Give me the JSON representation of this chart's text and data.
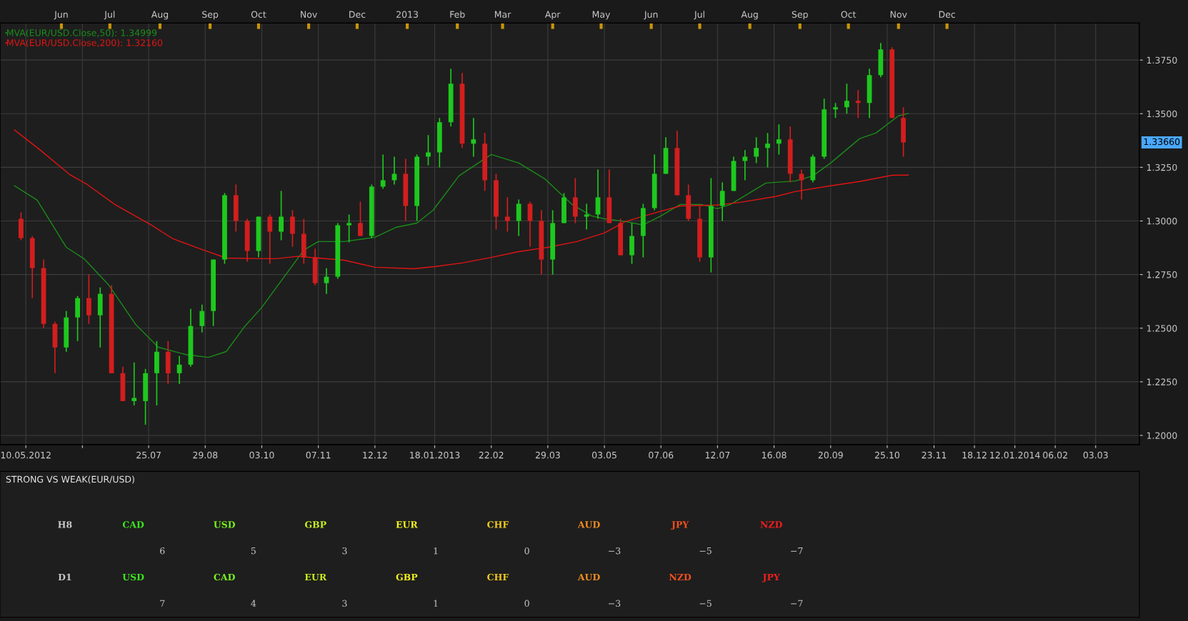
{
  "chart_data": [
    {
      "type": "candlestick",
      "colors": [
        "#d21e1e",
        "#d21e1e",
        "#d21e1e",
        "#d21e1e",
        "#1ec81e",
        "#1ec81e",
        "#d21e1e",
        "#1ec81e",
        "#d21e1e",
        "#d21e1e",
        "#1ec81e",
        "#1ec81e",
        "#1ec81e",
        "#d21e1e",
        "#1ec81e",
        "#1ec81e",
        "#1ec81e",
        "#1ec81e",
        "#1ec81e",
        "#d21e1e",
        "#d21e1e",
        "#1ec81e",
        "#d21e1e",
        "#1ec81e",
        "#d21e1e",
        "#d21e1e",
        "#d21e1e",
        "#1ec81e",
        "#1ec81e",
        "#1ec81e",
        "#d21e1e",
        "#1ec81e",
        "#1ec81e",
        "#1ec81e",
        "#d21e1e",
        "#1ec81e",
        "#1ec81e",
        "#1ec81e",
        "#1ec81e",
        "#d21e1e",
        "#1ec81e",
        "#d21e1e",
        "#d21e1e",
        "#d21e1e",
        "#1ec81e",
        "#d21e1e",
        "#d21e1e",
        "#1ec81e",
        "#1ec81e",
        "#d21e1e",
        "#1ec81e",
        "#1ec81e",
        "#d21e1e",
        "#d21e1e",
        "#1ec81e",
        "#1ec81e",
        "#1ec81e",
        "#1ec81e",
        "#d21e1e",
        "#d21e1e",
        "#d21e1e",
        "#1ec81e",
        "#1ec81e",
        "#1ec81e",
        "#1ec81e",
        "#1ec81e",
        "#1ec81e",
        "#1ec81e",
        "#d21e1e",
        "#d21e1e",
        "#1ec81e",
        "#1ec81e",
        "#1ec81e",
        "#1ec81e",
        "#d21e1e",
        "#1ec81e",
        "#1ec81e",
        "#d21e1e",
        "#d21e1e"
      ],
      "x": [
        "2012-05-07",
        "2012-05-14",
        "2012-05-21",
        "2012-05-28",
        "2012-06-04",
        "2012-06-11",
        "2012-06-18",
        "2012-06-25",
        "2012-07-02",
        "2012-07-09",
        "2012-07-16",
        "2012-07-23",
        "2012-07-30",
        "2012-08-06",
        "2012-08-13",
        "2012-08-20",
        "2012-08-27",
        "2012-09-03",
        "2012-09-10",
        "2012-09-17",
        "2012-09-24",
        "2012-10-01",
        "2012-10-08",
        "2012-10-15",
        "2012-10-22",
        "2012-10-29",
        "2012-11-05",
        "2012-11-12",
        "2012-11-19",
        "2012-11-26",
        "2012-12-03",
        "2012-12-10",
        "2012-12-17",
        "2012-12-24",
        "2012-12-31",
        "2013-01-07",
        "2013-01-14",
        "2013-01-21",
        "2013-01-28",
        "2013-02-04",
        "2013-02-11",
        "2013-02-18",
        "2013-02-25",
        "2013-03-04",
        "2013-03-11",
        "2013-03-18",
        "2013-03-25",
        "2013-04-01",
        "2013-04-08",
        "2013-04-15",
        "2013-04-22",
        "2013-04-29",
        "2013-05-06",
        "2013-05-13",
        "2013-05-20",
        "2013-05-27",
        "2013-06-03",
        "2013-06-10",
        "2013-06-17",
        "2013-06-24",
        "2013-07-01",
        "2013-07-08",
        "2013-07-15",
        "2013-07-22",
        "2013-07-29",
        "2013-08-05",
        "2013-08-12",
        "2013-08-19",
        "2013-08-26",
        "2013-09-02",
        "2013-09-09",
        "2013-09-16",
        "2013-09-23",
        "2013-09-30",
        "2013-10-07",
        "2013-10-14",
        "2013-10-21",
        "2013-10-28",
        "2013-11-04"
      ],
      "ohlc": [
        [
          1.301,
          1.304,
          1.291,
          1.292
        ],
        [
          1.292,
          1.293,
          1.264,
          1.278
        ],
        [
          1.278,
          1.282,
          1.25,
          1.252
        ],
        [
          1.252,
          1.253,
          1.229,
          1.241
        ],
        [
          1.241,
          1.258,
          1.239,
          1.255
        ],
        [
          1.255,
          1.265,
          1.244,
          1.264
        ],
        [
          1.264,
          1.275,
          1.252,
          1.256
        ],
        [
          1.256,
          1.269,
          1.241,
          1.266
        ],
        [
          1.266,
          1.27,
          1.229,
          1.229
        ],
        [
          1.229,
          1.232,
          1.216,
          1.216
        ],
        [
          1.216,
          1.234,
          1.214,
          1.2175
        ],
        [
          1.216,
          1.231,
          1.205,
          1.229
        ],
        [
          1.229,
          1.244,
          1.214,
          1.239
        ],
        [
          1.239,
          1.244,
          1.224,
          1.229
        ],
        [
          1.229,
          1.237,
          1.224,
          1.233
        ],
        [
          1.233,
          1.259,
          1.232,
          1.251
        ],
        [
          1.251,
          1.261,
          1.248,
          1.258
        ],
        [
          1.258,
          1.282,
          1.251,
          1.282
        ],
        [
          1.282,
          1.313,
          1.28,
          1.312
        ],
        [
          1.312,
          1.317,
          1.295,
          1.3
        ],
        [
          1.3,
          1.301,
          1.281,
          1.286
        ],
        [
          1.286,
          1.302,
          1.283,
          1.302
        ],
        [
          1.302,
          1.303,
          1.28,
          1.295
        ],
        [
          1.295,
          1.314,
          1.291,
          1.302
        ],
        [
          1.302,
          1.305,
          1.288,
          1.294
        ],
        [
          1.294,
          1.301,
          1.28,
          1.283
        ],
        [
          1.283,
          1.287,
          1.27,
          1.271
        ],
        [
          1.271,
          1.278,
          1.266,
          1.274
        ],
        [
          1.274,
          1.299,
          1.273,
          1.298
        ],
        [
          1.298,
          1.303,
          1.29,
          1.299
        ],
        [
          1.299,
          1.309,
          1.293,
          1.293
        ],
        [
          1.293,
          1.317,
          1.292,
          1.316
        ],
        [
          1.316,
          1.331,
          1.315,
          1.319
        ],
        [
          1.319,
          1.33,
          1.317,
          1.322
        ],
        [
          1.322,
          1.329,
          1.3,
          1.307
        ],
        [
          1.307,
          1.331,
          1.3,
          1.33
        ],
        [
          1.33,
          1.34,
          1.326,
          1.332
        ],
        [
          1.332,
          1.348,
          1.325,
          1.346
        ],
        [
          1.346,
          1.371,
          1.344,
          1.364
        ],
        [
          1.364,
          1.369,
          1.334,
          1.336
        ],
        [
          1.336,
          1.348,
          1.33,
          1.338
        ],
        [
          1.336,
          1.341,
          1.314,
          1.319
        ],
        [
          1.319,
          1.322,
          1.296,
          1.302
        ],
        [
          1.302,
          1.311,
          1.295,
          1.3
        ],
        [
          1.3,
          1.31,
          1.293,
          1.308
        ],
        [
          1.308,
          1.309,
          1.288,
          1.3
        ],
        [
          1.3,
          1.305,
          1.275,
          1.282
        ],
        [
          1.282,
          1.305,
          1.275,
          1.299
        ],
        [
          1.299,
          1.313,
          1.299,
          1.311
        ],
        [
          1.311,
          1.32,
          1.299,
          1.302
        ],
        [
          1.302,
          1.308,
          1.296,
          1.303
        ],
        [
          1.303,
          1.324,
          1.301,
          1.311
        ],
        [
          1.311,
          1.324,
          1.299,
          1.299
        ],
        [
          1.299,
          1.301,
          1.284,
          1.284
        ],
        [
          1.284,
          1.299,
          1.28,
          1.293
        ],
        [
          1.293,
          1.308,
          1.283,
          1.306
        ],
        [
          1.306,
          1.331,
          1.305,
          1.322
        ],
        [
          1.322,
          1.339,
          1.322,
          1.334
        ],
        [
          1.334,
          1.342,
          1.312,
          1.312
        ],
        [
          1.312,
          1.317,
          1.3,
          1.301
        ],
        [
          1.301,
          1.307,
          1.281,
          1.283
        ],
        [
          1.283,
          1.32,
          1.276,
          1.307
        ],
        [
          1.307,
          1.318,
          1.3,
          1.314
        ],
        [
          1.314,
          1.33,
          1.314,
          1.328
        ],
        [
          1.328,
          1.333,
          1.319,
          1.33
        ],
        [
          1.33,
          1.339,
          1.327,
          1.334
        ],
        [
          1.334,
          1.341,
          1.325,
          1.336
        ],
        [
          1.336,
          1.345,
          1.331,
          1.338
        ],
        [
          1.338,
          1.344,
          1.318,
          1.322
        ],
        [
          1.322,
          1.324,
          1.31,
          1.319
        ],
        [
          1.319,
          1.331,
          1.318,
          1.33
        ],
        [
          1.33,
          1.357,
          1.329,
          1.352
        ],
        [
          1.352,
          1.355,
          1.348,
          1.353
        ],
        [
          1.353,
          1.364,
          1.35,
          1.356
        ],
        [
          1.356,
          1.361,
          1.348,
          1.355
        ],
        [
          1.355,
          1.371,
          1.348,
          1.368
        ],
        [
          1.368,
          1.383,
          1.367,
          1.38
        ],
        [
          1.38,
          1.381,
          1.348,
          1.348
        ],
        [
          1.348,
          1.353,
          1.33,
          1.3366
        ]
      ],
      "series": [
        {
          "type": "line",
          "name": "MVA(EUR/USD.Close,50): 1.34999",
          "color": "#1a8c1a",
          "x": [
            "2012-05-03",
            "2012-05-17",
            "2012-06-04",
            "2012-06-15",
            "2012-06-30",
            "2012-07-17",
            "2012-07-31",
            "2012-08-17",
            "2012-08-31",
            "2012-09-11",
            "2012-09-22",
            "2012-10-03",
            "2012-10-16",
            "2012-10-29",
            "2012-11-07",
            "2012-11-23",
            "2012-12-12",
            "2012-12-25",
            "2013-01-07",
            "2013-01-17",
            "2013-02-02",
            "2013-02-22",
            "2013-03-11",
            "2013-03-27",
            "2013-04-13",
            "2013-04-25",
            "2013-05-03",
            "2013-05-16",
            "2013-05-27",
            "2013-06-07",
            "2013-06-19",
            "2013-07-02",
            "2013-07-12",
            "2013-07-20",
            "2013-08-11",
            "2013-08-29",
            "2013-09-09",
            "2013-09-20",
            "2013-10-08",
            "2013-10-18",
            "2013-11-01",
            "2013-11-07"
          ],
          "values": [
            1.3164,
            1.3097,
            1.2877,
            1.2824,
            1.2704,
            1.2517,
            1.2411,
            1.2377,
            1.2364,
            1.2391,
            1.2504,
            1.2597,
            1.2731,
            1.2864,
            1.2904,
            1.2904,
            1.2924,
            1.297,
            1.299,
            1.305,
            1.321,
            1.331,
            1.327,
            1.3197,
            1.3077,
            1.3024,
            1.301,
            1.2997,
            1.2981,
            1.3024,
            1.3077,
            1.3077,
            1.3057,
            1.3077,
            1.3177,
            1.3186,
            1.321,
            1.327,
            1.3384,
            1.341,
            1.349,
            1.3501
          ]
        },
        {
          "type": "line",
          "name": "MVA(EUR/USD.Close,200): 1.32160",
          "color": "#e01414",
          "x": [
            "2012-05-03",
            "2012-05-19",
            "2012-06-06",
            "2012-06-17",
            "2012-07-04",
            "2012-07-26",
            "2012-08-09",
            "2012-08-28",
            "2012-09-11",
            "2012-10-03",
            "2012-10-12",
            "2012-10-25",
            "2012-11-07",
            "2012-11-23",
            "2012-12-12",
            "2013-01-05",
            "2013-01-18",
            "2013-02-04",
            "2013-02-22",
            "2013-03-11",
            "2013-03-29",
            "2013-04-16",
            "2013-05-03",
            "2013-05-16",
            "2013-06-03",
            "2013-06-19",
            "2013-07-12",
            "2013-07-27",
            "2013-08-17",
            "2013-08-29",
            "2013-09-20",
            "2013-10-08",
            "2013-10-28",
            "2013-11-07"
          ],
          "values": [
            1.3424,
            1.333,
            1.3217,
            1.317,
            1.3077,
            1.2984,
            1.2917,
            1.2864,
            1.2827,
            1.2824,
            1.2824,
            1.2835,
            1.2827,
            1.2817,
            1.2784,
            1.2777,
            1.2787,
            1.2804,
            1.283,
            1.2857,
            1.2877,
            1.2904,
            1.2944,
            1.2997,
            1.3037,
            1.307,
            1.3074,
            1.3088,
            1.3114,
            1.3137,
            1.3164,
            1.3184,
            1.3213,
            1.3214
          ]
        }
      ],
      "xlim": [
        "2012-04-24",
        "2014-03-30"
      ],
      "xticks": [
        {
          "value": "2012-05-10",
          "label": "10.05.2012"
        },
        {
          "value": "2012-06-14",
          "label": null
        },
        {
          "value": "2012-07-25",
          "label": "25.07"
        },
        {
          "value": "2012-08-29",
          "label": "29.08"
        },
        {
          "value": "2012-10-03",
          "label": "03.10"
        },
        {
          "value": "2012-11-07",
          "label": "07.11"
        },
        {
          "value": "2012-12-12",
          "label": "12.12"
        },
        {
          "value": "2013-01-18",
          "label": "18.01.2013"
        },
        {
          "value": "2013-02-22",
          "label": "22.02"
        },
        {
          "value": "2013-03-29",
          "label": "29.03"
        },
        {
          "value": "2013-05-03",
          "label": "03.05"
        },
        {
          "value": "2013-06-07",
          "label": "07.06"
        },
        {
          "value": "2013-07-12",
          "label": "12.07"
        },
        {
          "value": "2013-08-16",
          "label": "16.08"
        },
        {
          "value": "2013-09-20",
          "label": "20.09"
        },
        {
          "value": "2013-10-25",
          "label": "25.10"
        },
        {
          "value": "2013-11-23",
          "label": "23.11"
        },
        {
          "value": "2013-12-18",
          "label": "18.12"
        },
        {
          "value": "2014-01-12",
          "label": "12.01.2014"
        },
        {
          "value": "2014-02-06",
          "label": "06.02"
        },
        {
          "value": "2014-03-03",
          "label": "03.03"
        }
      ],
      "x2lim": [
        "2012-04-24",
        "2014-03-30"
      ],
      "x2ticks": [
        {
          "value": "2012-06-01",
          "label": "Jun"
        },
        {
          "value": "2012-07-01",
          "label": "Jul"
        },
        {
          "value": "2012-08-01",
          "label": "Aug"
        },
        {
          "value": "2012-09-01",
          "label": "Sep"
        },
        {
          "value": "2012-10-01",
          "label": "Oct"
        },
        {
          "value": "2012-11-01",
          "label": "Nov"
        },
        {
          "value": "2012-12-01",
          "label": "Dec"
        },
        {
          "value": "2013-01-01",
          "label": "2013"
        },
        {
          "value": "2013-02-01",
          "label": "Feb"
        },
        {
          "value": "2013-03-01",
          "label": "Mar"
        },
        {
          "value": "2013-04-01",
          "label": "Apr"
        },
        {
          "value": "2013-05-01",
          "label": "May"
        },
        {
          "value": "2013-06-01",
          "label": "Jun"
        },
        {
          "value": "2013-07-01",
          "label": "Jul"
        },
        {
          "value": "2013-08-01",
          "label": "Aug"
        },
        {
          "value": "2013-09-01",
          "label": "Sep"
        },
        {
          "value": "2013-10-01",
          "label": "Oct"
        },
        {
          "value": "2013-11-01",
          "label": "Nov"
        },
        {
          "value": "2013-12-01",
          "label": "Dec"
        }
      ],
      "ylim": [
        1.1957,
        1.3923
      ],
      "yticks": [
        {
          "value": 1.2,
          "label": "1.2000"
        },
        {
          "value": 1.225,
          "label": "1.2250"
        },
        {
          "value": 1.25,
          "label": "1.2500"
        },
        {
          "value": 1.275,
          "label": "1.2750"
        },
        {
          "value": 1.3,
          "label": "1.3000"
        },
        {
          "value": 1.325,
          "label": "1.3250"
        },
        {
          "value": 1.35,
          "label": "1.3500"
        },
        {
          "value": 1.375,
          "label": "1.3750"
        }
      ],
      "annotations": [
        "1.33660"
      ],
      "grid": true,
      "legend": "top left"
    },
    {
      "type": "other",
      "title": "STRONG VS WEAK(EUR/USD)",
      "y_categories": [
        "H8",
        "D1"
      ],
      "cell_labels": [
        [
          "CAD\n6",
          "USD\n5",
          "GBP\n3",
          "EUR\n1",
          "CHF\n0",
          "AUD\n−3",
          "JPY\n−5",
          "NZD\n−7"
        ],
        [
          "USD\n7",
          "CAD\n4",
          "EUR\n3",
          "GBP\n1",
          "CHF\n0",
          "AUD\n−3",
          "NZD\n−5",
          "JPY\n−7"
        ]
      ],
      "colors": [
        "#3ce61e",
        "#78f01e",
        "#c8f01e",
        "#f0f01e",
        "#f0c81e",
        "#f08c1e",
        "#f0501e",
        "#f01e1e"
      ]
    }
  ]
}
